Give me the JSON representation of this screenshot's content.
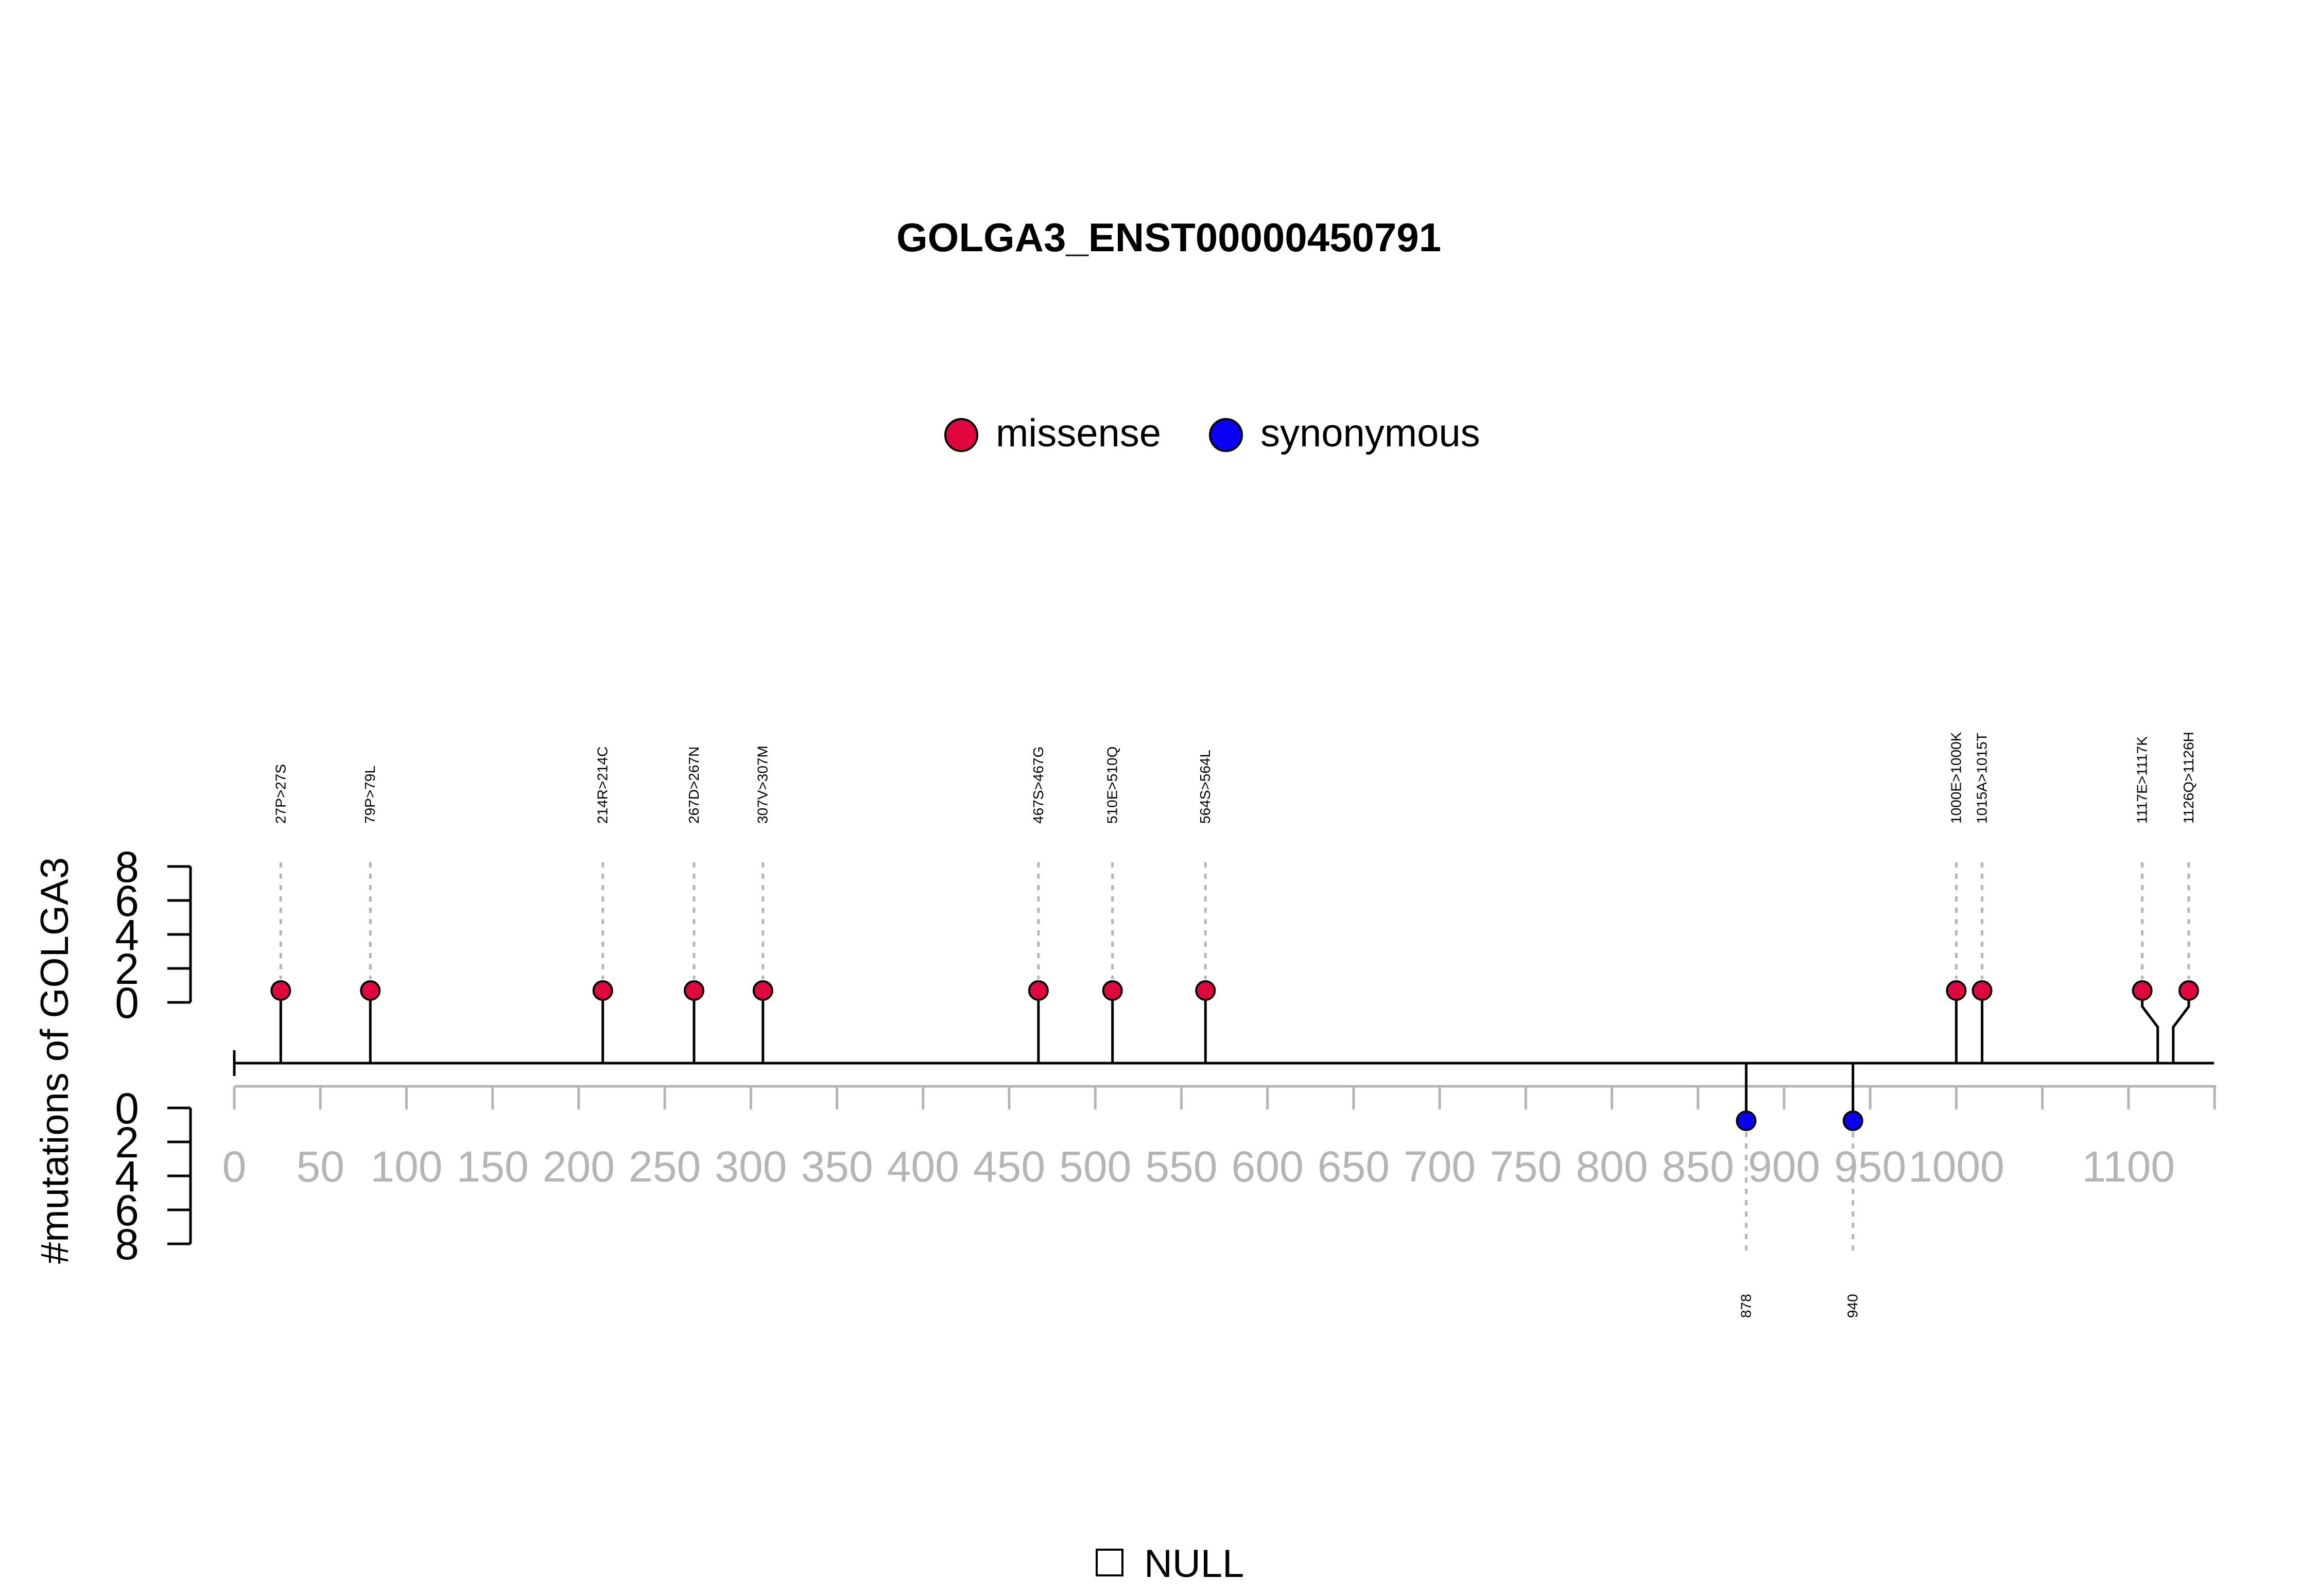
{
  "chart_data": {
    "type": "lollipop",
    "title": "GOLGA3_ENST00000450791",
    "ylabel": "#mutations of GOLGA3",
    "xlim": [
      0,
      1151
    ],
    "xticks": [
      0,
      50,
      100,
      150,
      200,
      250,
      300,
      350,
      400,
      450,
      500,
      550,
      600,
      650,
      700,
      750,
      800,
      850,
      900,
      950,
      1000,
      1100
    ],
    "yticks_upper": [
      "8",
      "6",
      "4",
      "2",
      "0"
    ],
    "yticks_lower": [
      "0",
      "2",
      "4",
      "6",
      "8"
    ],
    "legend": [
      {
        "name": "missense",
        "color": "#e0073f"
      },
      {
        "name": "synonymous",
        "color": "#0a00f5"
      }
    ],
    "domain_legend": "NULL",
    "series": [
      {
        "name": "missense",
        "color": "#e0073f",
        "points": [
          {
            "x": 27,
            "count": 1,
            "label": "27P>27S"
          },
          {
            "x": 79,
            "count": 1,
            "label": "79P>79L"
          },
          {
            "x": 214,
            "count": 1,
            "label": "214R>214C"
          },
          {
            "x": 267,
            "count": 1,
            "label": "267D>267N"
          },
          {
            "x": 307,
            "count": 1,
            "label": "307V>307M"
          },
          {
            "x": 467,
            "count": 1,
            "label": "467S>467G"
          },
          {
            "x": 510,
            "count": 1,
            "label": "510E>510Q"
          },
          {
            "x": 564,
            "count": 1,
            "label": "564S>564L"
          },
          {
            "x": 1000,
            "count": 1,
            "label": "1000E>1000K"
          },
          {
            "x": 1015,
            "count": 1,
            "label": "1015A>1015T"
          },
          {
            "x": 1117,
            "count": 1,
            "label": "1117E>1117K"
          },
          {
            "x": 1126,
            "count": 1,
            "label": "1126Q>1126H"
          }
        ]
      },
      {
        "name": "synonymous",
        "color": "#0a00f5",
        "points": [
          {
            "x": 878,
            "count": 1,
            "label": "878"
          },
          {
            "x": 940,
            "count": 1,
            "label": "940"
          }
        ]
      }
    ]
  }
}
